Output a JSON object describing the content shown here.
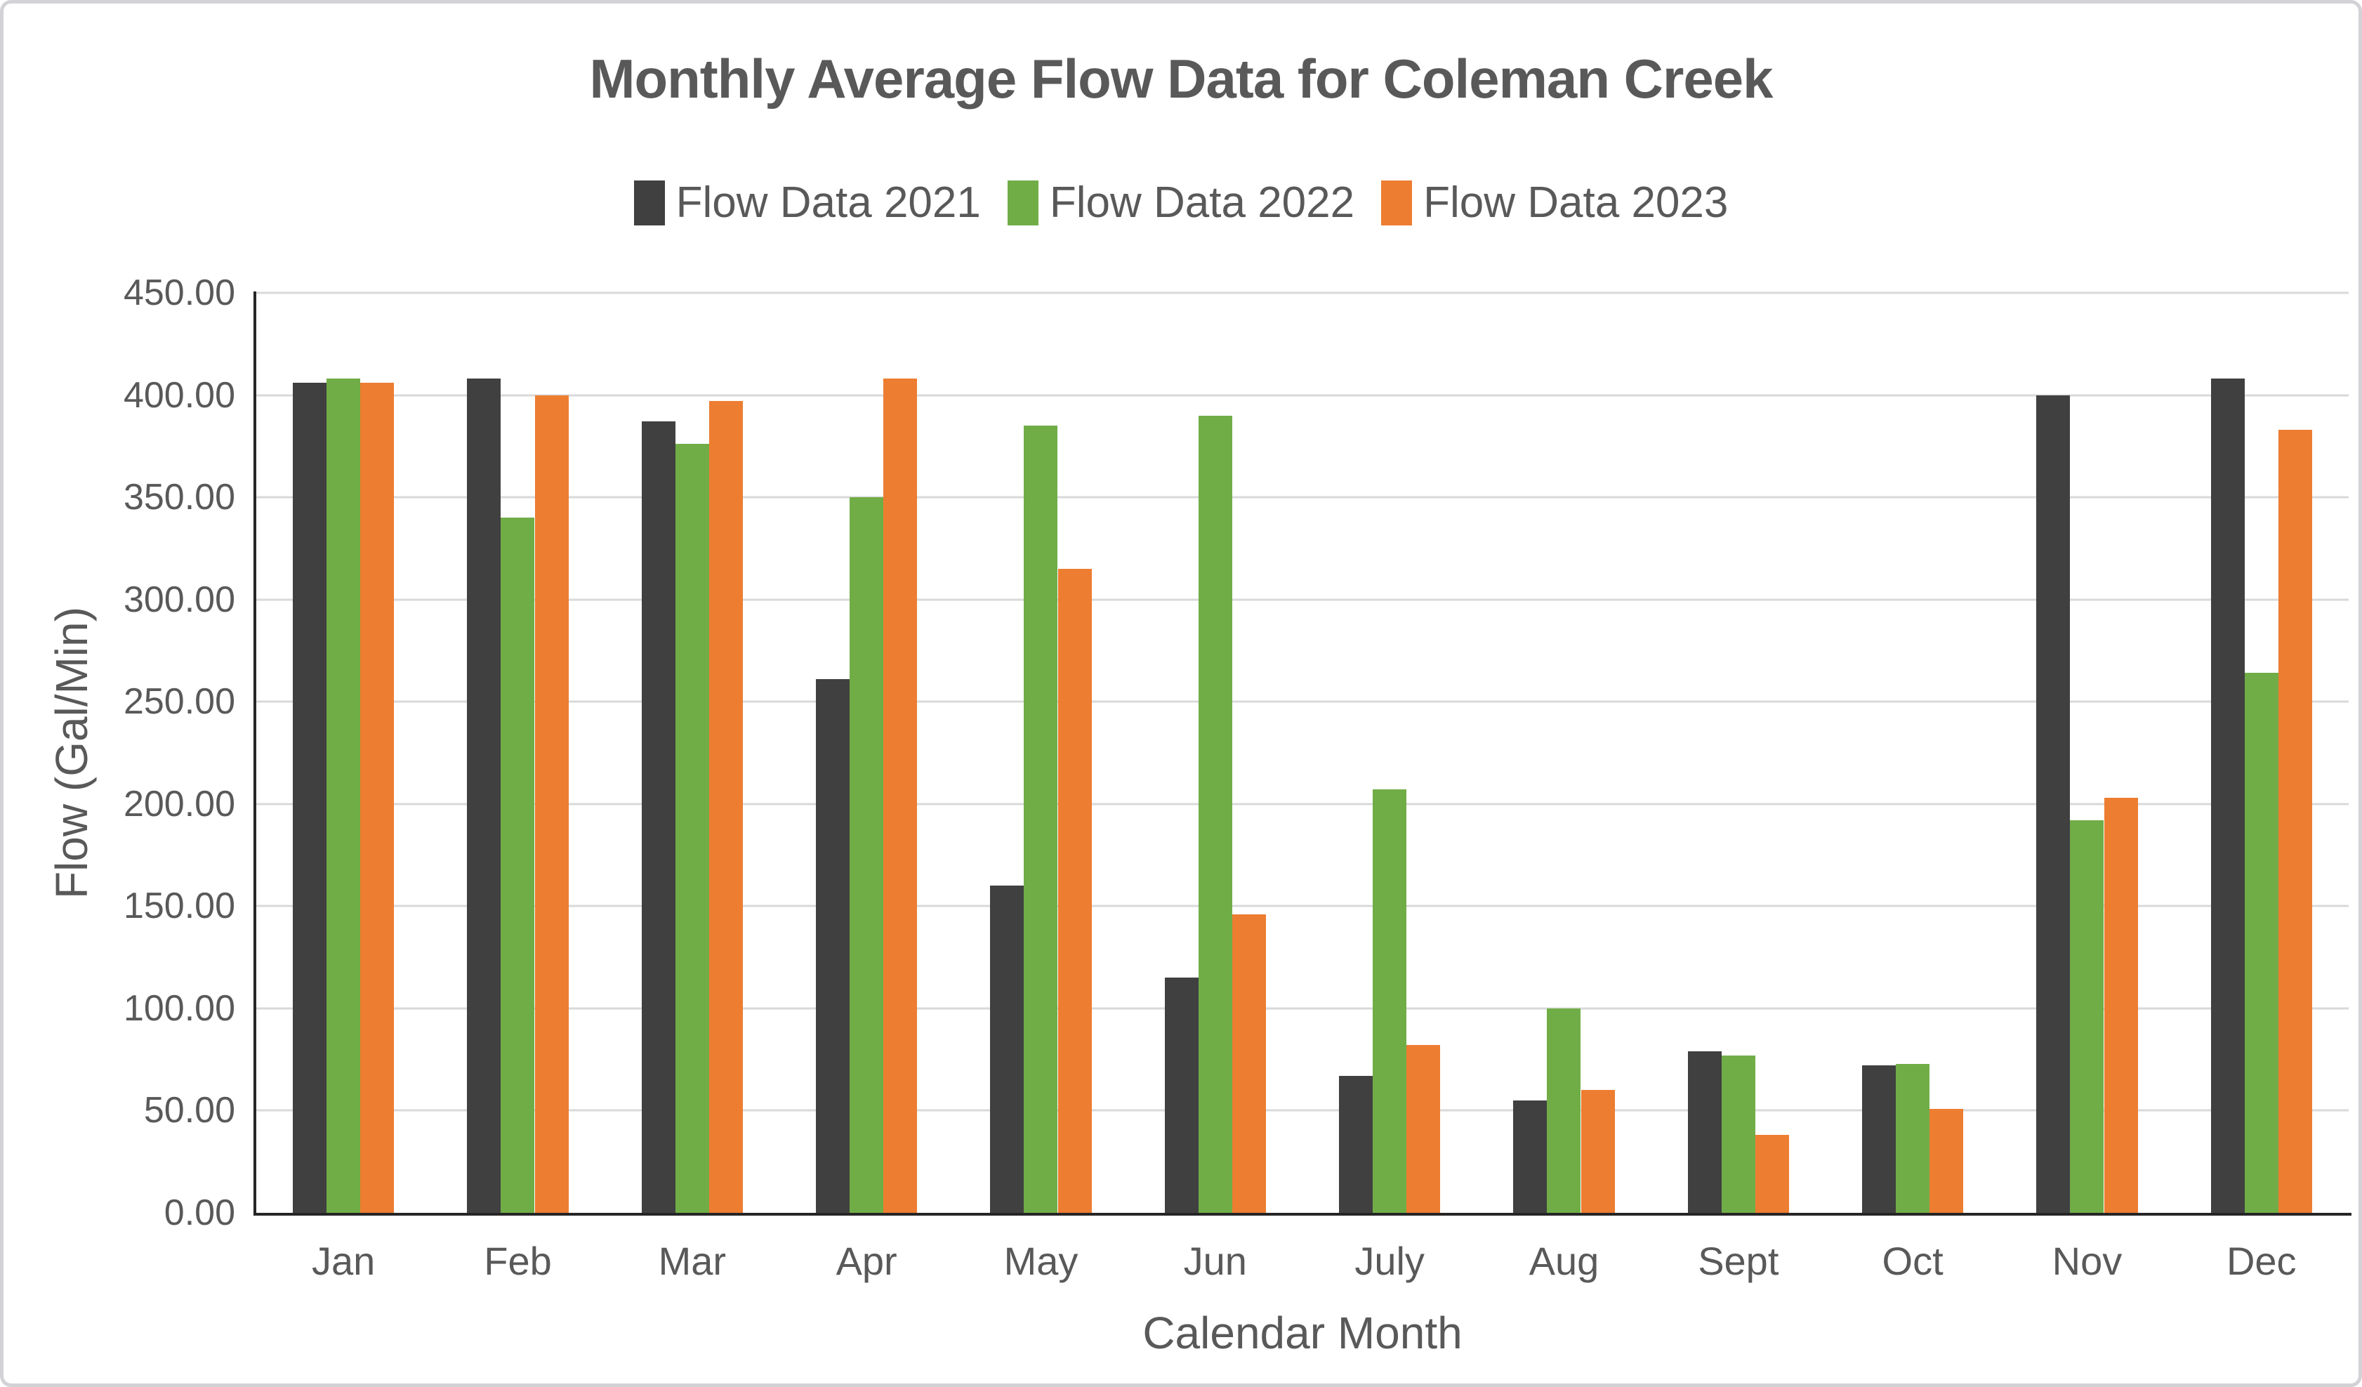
{
  "chart_data": {
    "type": "bar",
    "title": "Monthly Average Flow Data for Coleman Creek",
    "xlabel": "Calendar Month",
    "ylabel": "Flow (Gal/Min)",
    "ylim": [
      0,
      450
    ],
    "ytick_step": 50,
    "yticks": [
      {
        "value": 0,
        "label": "0.00"
      },
      {
        "value": 50,
        "label": "50.00"
      },
      {
        "value": 100,
        "label": "100.00"
      },
      {
        "value": 150,
        "label": "150.00"
      },
      {
        "value": 200,
        "label": "200.00"
      },
      {
        "value": 250,
        "label": "250.00"
      },
      {
        "value": 300,
        "label": "300.00"
      },
      {
        "value": 350,
        "label": "350.00"
      },
      {
        "value": 400,
        "label": "400.00"
      },
      {
        "value": 450,
        "label": "450.00"
      }
    ],
    "grid": true,
    "legend_position": "top",
    "categories": [
      "Jan",
      "Feb",
      "Mar",
      "Apr",
      "May",
      "Jun",
      "July",
      "Aug",
      "Sept",
      "Oct",
      "Nov",
      "Dec"
    ],
    "series": [
      {
        "name": "Flow Data 2021",
        "color": "#404040",
        "values": [
          406,
          408,
          387,
          261,
          160,
          115,
          67,
          55,
          79,
          72,
          400,
          408
        ]
      },
      {
        "name": "Flow Data 2022",
        "color": "#70AD47",
        "values": [
          408,
          340,
          376,
          350,
          385,
          390,
          207,
          100,
          77,
          73,
          192,
          264
        ]
      },
      {
        "name": "Flow Data 2023",
        "color": "#ED7D31",
        "values": [
          406,
          400,
          397,
          408,
          315,
          146,
          82,
          60,
          38,
          51,
          203,
          383
        ]
      }
    ],
    "colors": {
      "text": "#595959",
      "gridline": "#D9D9D9",
      "axis_line": "#262626"
    }
  }
}
